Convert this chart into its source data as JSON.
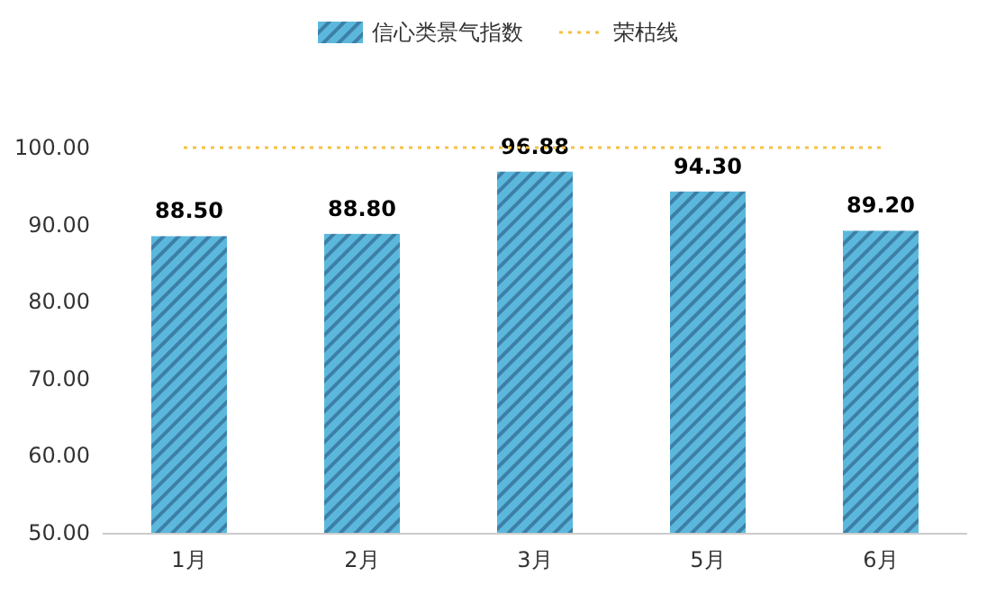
{
  "chart_data": {
    "type": "bar",
    "categories": [
      "1月",
      "2月",
      "3月",
      "5月",
      "6月"
    ],
    "series": [
      {
        "name": "信心类景气指数",
        "color": "#5bb8dc",
        "values": [
          88.5,
          88.8,
          96.88,
          94.3,
          89.2
        ],
        "value_labels": [
          "88.50",
          "88.80",
          "96.88",
          "94.30",
          "89.20"
        ]
      }
    ],
    "ylim": [
      50,
      100
    ],
    "yticks": [
      {
        "value": 50,
        "label": "50.00"
      },
      {
        "value": 60,
        "label": "60.00"
      },
      {
        "value": 70,
        "label": "70.00"
      },
      {
        "value": 80,
        "label": "80.00"
      },
      {
        "value": 90,
        "label": "90.00"
      },
      {
        "value": 100,
        "label": "100.00"
      }
    ],
    "ref_lines": [
      {
        "axis": "y",
        "value": 100,
        "label": "荣枯线",
        "color": "#f5c342",
        "line_style": "dotted"
      }
    ],
    "legend": "top",
    "grid": false
  }
}
